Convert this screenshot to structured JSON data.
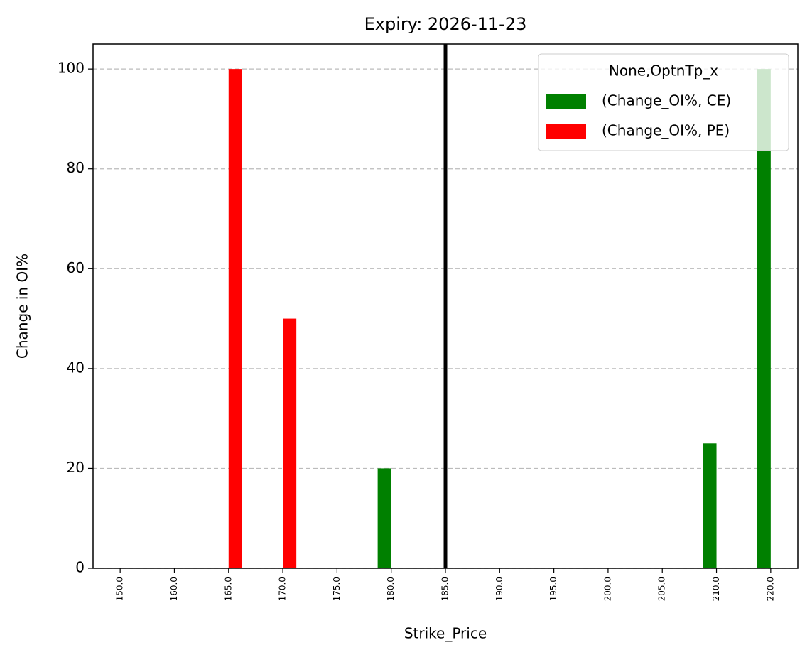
{
  "chart_data": {
    "type": "bar",
    "title": "Expiry: 2026-11-23",
    "x_label": "Strike_Price",
    "y_label": "Change in OI%",
    "categories": [
      "150.0",
      "160.0",
      "165.0",
      "170.0",
      "175.0",
      "180.0",
      "185.0",
      "190.0",
      "195.0",
      "200.0",
      "205.0",
      "210.0",
      "220.0"
    ],
    "series": [
      {
        "name": "(Change_OI%, CE)",
        "color": "#008000",
        "values": [
          0,
          0,
          0,
          0,
          0,
          20,
          0,
          0,
          0,
          0,
          0,
          25,
          100
        ]
      },
      {
        "name": "(Change_OI%, PE)",
        "color": "#ff0000",
        "values": [
          0,
          0,
          100,
          50,
          0,
          0,
          0,
          0,
          0,
          0,
          0,
          0,
          0
        ]
      }
    ],
    "legend_title": "None,OptnTp_x",
    "legend_loc": "upper right",
    "vline": {
      "category": "185.0",
      "color": "#000000"
    },
    "ylim": [
      0,
      105
    ],
    "yticks": [
      0,
      20,
      40,
      60,
      80,
      100
    ],
    "grid": true
  }
}
